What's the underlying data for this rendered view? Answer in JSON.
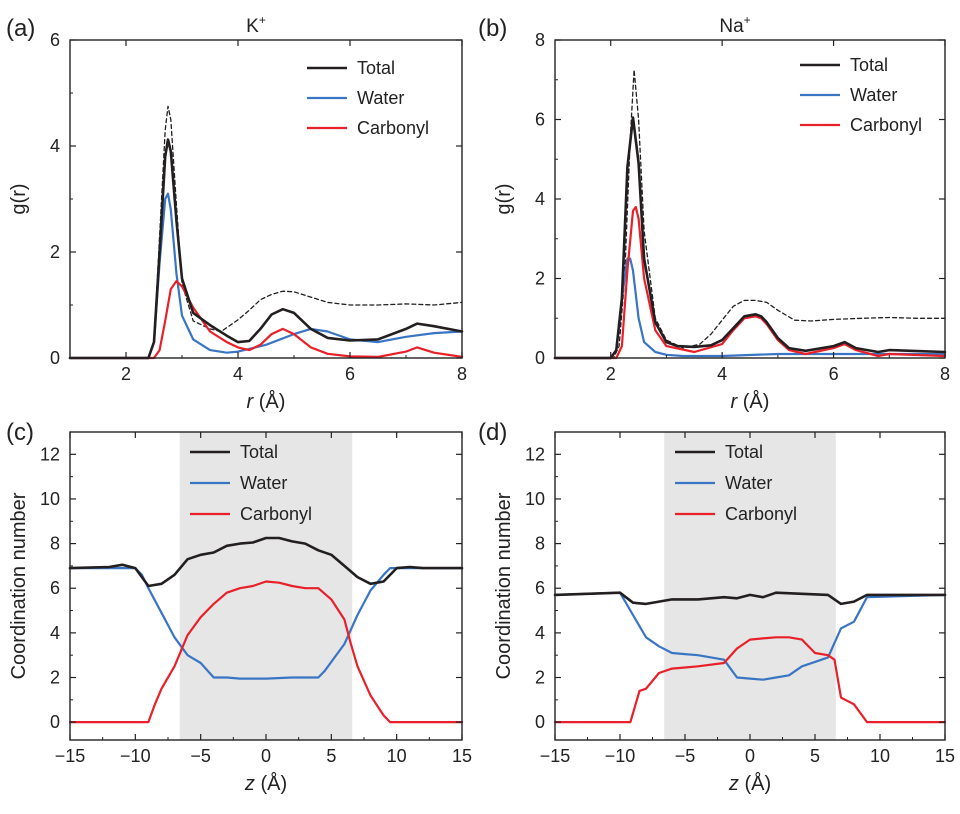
{
  "colors": {
    "total": "#231f20",
    "water": "#3a75c4",
    "carbonyl": "#e8202a",
    "dashed": "#231f20",
    "shade": "#e6e6e6"
  },
  "chart_data": [
    {
      "panel": "(a)",
      "type": "line",
      "title": "K",
      "title_sup": "+",
      "xlabel_italic": "r",
      "xlabel_unit": " (Å)",
      "ylabel": "g(r)",
      "xlim": [
        1,
        8
      ],
      "ylim": [
        0,
        6
      ],
      "xticks": [
        2,
        4,
        6,
        8
      ],
      "yticks": [
        0,
        2,
        4,
        6
      ],
      "legend": {
        "position": "top-right",
        "entries": [
          "Total",
          "Water",
          "Carbonyl"
        ]
      },
      "series": [
        {
          "name": "Total",
          "key": "total",
          "x": [
            1,
            2.4,
            2.5,
            2.6,
            2.7,
            2.75,
            2.8,
            2.9,
            3.0,
            3.2,
            3.5,
            3.8,
            4.0,
            4.2,
            4.4,
            4.6,
            4.8,
            5.0,
            5.3,
            5.6,
            6.0,
            6.5,
            7.0,
            7.2,
            7.5,
            8.0
          ],
          "y": [
            0,
            0,
            0.3,
            2.0,
            3.8,
            4.12,
            3.9,
            2.6,
            1.5,
            0.85,
            0.62,
            0.42,
            0.3,
            0.32,
            0.55,
            0.82,
            0.92,
            0.85,
            0.55,
            0.38,
            0.33,
            0.35,
            0.55,
            0.65,
            0.6,
            0.5
          ]
        },
        {
          "name": "Water",
          "key": "water",
          "x": [
            1,
            2.4,
            2.5,
            2.6,
            2.7,
            2.75,
            2.8,
            2.9,
            3.0,
            3.2,
            3.5,
            3.8,
            4.0,
            4.5,
            5.0,
            5.3,
            5.6,
            6.0,
            6.5,
            7.0,
            7.5,
            8.0
          ],
          "y": [
            0,
            0,
            0.3,
            1.8,
            3.0,
            3.1,
            2.8,
            1.6,
            0.8,
            0.35,
            0.15,
            0.1,
            0.12,
            0.25,
            0.45,
            0.55,
            0.5,
            0.35,
            0.3,
            0.4,
            0.47,
            0.5
          ]
        },
        {
          "name": "Carbonyl",
          "key": "carbonyl",
          "x": [
            1,
            2.5,
            2.6,
            2.7,
            2.8,
            2.9,
            3.0,
            3.2,
            3.5,
            3.8,
            4.0,
            4.2,
            4.4,
            4.6,
            4.8,
            5.0,
            5.3,
            5.6,
            6.0,
            6.5,
            7.0,
            7.2,
            7.5,
            8.0
          ],
          "y": [
            0,
            0,
            0.15,
            0.7,
            1.3,
            1.45,
            1.35,
            0.95,
            0.5,
            0.3,
            0.2,
            0.15,
            0.25,
            0.45,
            0.55,
            0.45,
            0.2,
            0.08,
            0.03,
            0.02,
            0.12,
            0.2,
            0.1,
            0.02
          ]
        },
        {
          "name": "",
          "key": "dashed",
          "x": [
            1,
            2.4,
            2.5,
            2.6,
            2.7,
            2.75,
            2.8,
            2.9,
            3.0,
            3.2,
            3.5,
            3.7,
            4.0,
            4.2,
            4.4,
            4.6,
            4.8,
            5.0,
            5.3,
            5.6,
            6.0,
            6.5,
            7.0,
            7.5,
            8.0
          ],
          "y": [
            0,
            0,
            0.3,
            2.3,
            4.3,
            4.75,
            4.5,
            2.9,
            1.4,
            0.7,
            0.55,
            0.5,
            0.72,
            0.9,
            1.1,
            1.2,
            1.26,
            1.25,
            1.15,
            1.05,
            1.0,
            1.0,
            1.02,
            1.0,
            1.05
          ]
        }
      ]
    },
    {
      "panel": "(b)",
      "type": "line",
      "title": "Na",
      "title_sup": "+",
      "xlabel_italic": "r",
      "xlabel_unit": " (Å)",
      "ylabel": "g(r)",
      "xlim": [
        1,
        8
      ],
      "ylim": [
        0,
        8
      ],
      "xticks": [
        2,
        4,
        6,
        8
      ],
      "yticks": [
        0,
        2,
        4,
        6,
        8
      ],
      "legend": {
        "position": "top-right",
        "entries": [
          "Total",
          "Water",
          "Carbonyl"
        ]
      },
      "series": [
        {
          "name": "Total",
          "key": "total",
          "x": [
            1,
            2.0,
            2.1,
            2.2,
            2.3,
            2.4,
            2.5,
            2.6,
            2.8,
            3.0,
            3.2,
            3.5,
            3.8,
            4.0,
            4.2,
            4.4,
            4.6,
            4.7,
            4.8,
            5.0,
            5.2,
            5.5,
            6.0,
            6.2,
            6.4,
            6.8,
            7.0,
            8.0
          ],
          "y": [
            0,
            0,
            0.2,
            1.5,
            4.8,
            6.05,
            4.9,
            2.5,
            0.9,
            0.4,
            0.3,
            0.28,
            0.32,
            0.45,
            0.75,
            1.05,
            1.1,
            1.05,
            0.9,
            0.5,
            0.25,
            0.18,
            0.3,
            0.4,
            0.25,
            0.15,
            0.2,
            0.15
          ]
        },
        {
          "name": "Water",
          "key": "water",
          "x": [
            1,
            2.0,
            2.1,
            2.2,
            2.3,
            2.35,
            2.4,
            2.5,
            2.6,
            2.8,
            3.0,
            3.3,
            4.0,
            5.0,
            6.0,
            7.0,
            8.0
          ],
          "y": [
            0,
            0,
            0.2,
            1.5,
            2.5,
            2.5,
            2.2,
            1.0,
            0.4,
            0.15,
            0.08,
            0.05,
            0.05,
            0.1,
            0.1,
            0.1,
            0.1
          ]
        },
        {
          "name": "Carbonyl",
          "key": "carbonyl",
          "x": [
            1,
            2.1,
            2.2,
            2.3,
            2.4,
            2.45,
            2.5,
            2.6,
            2.8,
            3.0,
            3.5,
            4.0,
            4.2,
            4.4,
            4.6,
            4.7,
            4.8,
            5.0,
            5.2,
            5.5,
            6.0,
            6.2,
            6.4,
            6.8,
            7.0,
            8.0
          ],
          "y": [
            0,
            0,
            0.3,
            2.2,
            3.7,
            3.8,
            3.5,
            2.0,
            0.7,
            0.3,
            0.15,
            0.35,
            0.7,
            1.0,
            1.05,
            1.0,
            0.85,
            0.45,
            0.2,
            0.1,
            0.25,
            0.35,
            0.2,
            0.05,
            0.1,
            0.05
          ]
        },
        {
          "name": "",
          "key": "dashed",
          "x": [
            1,
            2.05,
            2.15,
            2.25,
            2.35,
            2.42,
            2.5,
            2.6,
            2.8,
            3.0,
            3.3,
            3.6,
            3.8,
            4.0,
            4.2,
            4.4,
            4.6,
            4.8,
            5.0,
            5.3,
            5.6,
            6.0,
            6.5,
            7.0,
            7.5,
            8.0
          ],
          "y": [
            0,
            0,
            0.3,
            2.0,
            5.5,
            7.25,
            6.0,
            3.2,
            1.0,
            0.45,
            0.25,
            0.35,
            0.6,
            0.95,
            1.3,
            1.45,
            1.45,
            1.4,
            1.2,
            0.95,
            0.93,
            0.97,
            1.0,
            1.02,
            1.0,
            1.0
          ]
        }
      ]
    },
    {
      "panel": "(c)",
      "type": "line",
      "xlabel_italic": "z",
      "xlabel_unit": " (Å)",
      "ylabel": "Coordination number",
      "xlim": [
        -15,
        15
      ],
      "ylim": [
        -0.8,
        13
      ],
      "xticks": [
        -15,
        -10,
        -5,
        0,
        5,
        10,
        15
      ],
      "yticks": [
        0,
        2,
        4,
        6,
        8,
        10,
        12
      ],
      "shaded_region": [
        -6.6,
        6.6
      ],
      "legend": {
        "position": "top-center",
        "entries": [
          "Total",
          "Water",
          "Carbonyl"
        ]
      },
      "series": [
        {
          "name": "Total",
          "key": "total",
          "x": [
            -15,
            -12,
            -11,
            -10,
            -9,
            -8,
            -7,
            -6,
            -5,
            -4,
            -3,
            -2,
            -1,
            0,
            1,
            2,
            3,
            4,
            5,
            6,
            7,
            8,
            9,
            10,
            11,
            12,
            15
          ],
          "y": [
            6.9,
            6.95,
            7.05,
            6.9,
            6.1,
            6.2,
            6.6,
            7.3,
            7.5,
            7.6,
            7.9,
            8.0,
            8.05,
            8.25,
            8.25,
            8.1,
            8.0,
            7.7,
            7.5,
            7.0,
            6.5,
            6.2,
            6.3,
            6.9,
            6.95,
            6.9,
            6.9
          ]
        },
        {
          "name": "Water",
          "key": "water",
          "x": [
            -15,
            -10,
            -9.5,
            -9,
            -8,
            -7,
            -6,
            -5,
            -4,
            -3,
            -2,
            0,
            2,
            4,
            4.5,
            5,
            6,
            7,
            8,
            9,
            9.5,
            10,
            15
          ],
          "y": [
            6.9,
            6.9,
            6.6,
            6.0,
            4.9,
            3.8,
            3.0,
            2.65,
            2.0,
            2.0,
            1.95,
            1.95,
            2.0,
            2.0,
            2.3,
            2.7,
            3.5,
            4.8,
            5.9,
            6.6,
            6.9,
            6.9,
            6.9
          ]
        },
        {
          "name": "Carbonyl",
          "key": "carbonyl",
          "x": [
            -15,
            -9,
            -8.5,
            -8,
            -7,
            -6,
            -5,
            -4,
            -3,
            -2,
            -1,
            0,
            1,
            2,
            3,
            4,
            5,
            6,
            6.5,
            7,
            8,
            9,
            9.5,
            15
          ],
          "y": [
            0,
            0,
            0.8,
            1.5,
            2.5,
            3.9,
            4.7,
            5.3,
            5.8,
            6.0,
            6.1,
            6.3,
            6.25,
            6.1,
            6.0,
            6.0,
            5.5,
            4.6,
            3.5,
            2.5,
            1.2,
            0.3,
            0,
            0
          ]
        }
      ]
    },
    {
      "panel": "(d)",
      "type": "line",
      "xlabel_italic": "z",
      "xlabel_unit": " (Å)",
      "ylabel": "Coordination number",
      "xlim": [
        -15,
        15
      ],
      "ylim": [
        -0.8,
        13
      ],
      "xticks": [
        -15,
        -10,
        -5,
        0,
        5,
        10,
        15
      ],
      "yticks": [
        0,
        2,
        4,
        6,
        8,
        10,
        12
      ],
      "shaded_region": [
        -6.6,
        6.6
      ],
      "legend": {
        "position": "top-center",
        "entries": [
          "Total",
          "Water",
          "Carbonyl"
        ]
      },
      "series": [
        {
          "name": "Total",
          "key": "total",
          "x": [
            -15,
            -10,
            -9,
            -8,
            -6,
            -4,
            -2,
            -1,
            0,
            1,
            2,
            4,
            6,
            7,
            8,
            9,
            10,
            15
          ],
          "y": [
            5.7,
            5.8,
            5.35,
            5.3,
            5.5,
            5.5,
            5.6,
            5.55,
            5.7,
            5.6,
            5.8,
            5.75,
            5.7,
            5.3,
            5.4,
            5.7,
            5.7,
            5.7
          ]
        },
        {
          "name": "Water",
          "key": "water",
          "x": [
            -15,
            -10,
            -9,
            -8,
            -7,
            -6,
            -5,
            -4,
            -2,
            -1,
            0,
            1,
            2,
            3,
            4,
            5,
            6,
            7,
            8,
            9,
            15
          ],
          "y": [
            5.7,
            5.8,
            4.8,
            3.8,
            3.4,
            3.1,
            3.05,
            3.0,
            2.8,
            2.0,
            1.95,
            1.9,
            2.0,
            2.1,
            2.5,
            2.7,
            2.9,
            4.2,
            4.5,
            5.6,
            5.7
          ]
        },
        {
          "name": "Carbonyl",
          "key": "carbonyl",
          "x": [
            -15,
            -9.2,
            -8.5,
            -8,
            -7,
            -6,
            -5,
            -4,
            -2,
            -1,
            0,
            1,
            2,
            3,
            4,
            5,
            6,
            6.5,
            7,
            8,
            9,
            15
          ],
          "y": [
            0,
            0,
            1.4,
            1.5,
            2.2,
            2.4,
            2.45,
            2.5,
            2.65,
            3.3,
            3.7,
            3.75,
            3.8,
            3.8,
            3.7,
            3.1,
            3.0,
            2.8,
            1.1,
            0.8,
            0,
            0
          ]
        }
      ]
    }
  ]
}
